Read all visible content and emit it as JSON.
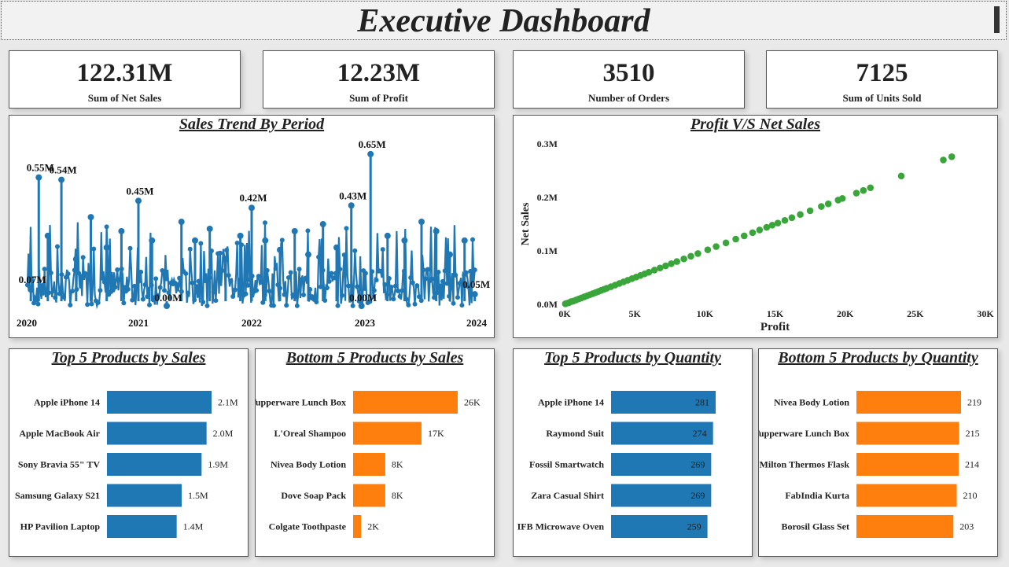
{
  "header": {
    "title": "Executive Dashboard"
  },
  "kpis": [
    {
      "value": "122.31M",
      "label": "Sum of Net Sales"
    },
    {
      "value": "12.23M",
      "label": "Sum of Profit"
    },
    {
      "value": "3510",
      "label": "Number of Orders"
    },
    {
      "value": "7125",
      "label": "Sum of Units Sold"
    }
  ],
  "colors": {
    "blue": "#1f77b4",
    "orange": "#ff7f0e",
    "green": "#3aa53a"
  },
  "chart_data": [
    {
      "id": "sales-trend",
      "type": "line",
      "title": "Sales Trend By Period",
      "xlim": [
        2020,
        2024
      ],
      "x_ticks": [
        "2020",
        "2021",
        "2022",
        "2023",
        "2024"
      ],
      "ylim": [
        0,
        0.68
      ],
      "series": [
        {
          "x": [
            2020.05,
            2020.12,
            2020.2,
            2020.32,
            2020.45,
            2020.58,
            2020.72,
            2020.85,
            2021.0,
            2021.12,
            2021.25,
            2021.38,
            2021.5,
            2021.63,
            2021.77,
            2021.9,
            2022.0,
            2022.12,
            2022.25,
            2022.38,
            2022.5,
            2022.63,
            2022.75,
            2022.88,
            2022.97,
            2023.05,
            2023.2,
            2023.35,
            2023.5,
            2023.63,
            2023.75,
            2023.88,
            2023.97
          ],
          "y": [
            0.07,
            0.55,
            0.3,
            0.54,
            0.2,
            0.38,
            0.25,
            0.32,
            0.45,
            0.28,
            0.0,
            0.36,
            0.28,
            0.33,
            0.2,
            0.3,
            0.42,
            0.28,
            0.24,
            0.32,
            0.22,
            0.35,
            0.25,
            0.43,
            0.0,
            0.65,
            0.3,
            0.28,
            0.36,
            0.32,
            0.22,
            0.28,
            0.05
          ]
        }
      ],
      "data_labels": [
        {
          "text": "0.07M",
          "x": 2020.05,
          "y": 0.07
        },
        {
          "text": "0.55M",
          "x": 2020.12,
          "y": 0.55
        },
        {
          "text": "0.54M",
          "x": 2020.32,
          "y": 0.54
        },
        {
          "text": "0.45M",
          "x": 2021.0,
          "y": 0.45
        },
        {
          "text": "0.00M",
          "x": 2021.25,
          "y": 0.0
        },
        {
          "text": "0.42M",
          "x": 2022.0,
          "y": 0.42
        },
        {
          "text": "0.43M",
          "x": 2022.88,
          "y": 0.43
        },
        {
          "text": "0.00M",
          "x": 2022.97,
          "y": 0.0
        },
        {
          "text": "0.65M",
          "x": 2023.05,
          "y": 0.65
        },
        {
          "text": "0.05M",
          "x": 2023.97,
          "y": 0.05
        }
      ]
    },
    {
      "id": "profit-vs-sales",
      "type": "scatter",
      "title": "Profit V/S Net Sales",
      "xlabel": "Profit",
      "ylabel": "Net Sales",
      "xlim": [
        0,
        30000
      ],
      "ylim": [
        0,
        0.3
      ],
      "x_ticks": [
        "0K",
        "5K",
        "10K",
        "15K",
        "20K",
        "25K",
        "30K"
      ],
      "y_ticks": [
        "0.0M",
        "0.1M",
        "0.2M",
        "0.3M"
      ],
      "points": [
        [
          50,
          0.001
        ],
        [
          150,
          0.002
        ],
        [
          300,
          0.003
        ],
        [
          450,
          0.005
        ],
        [
          600,
          0.006
        ],
        [
          800,
          0.008
        ],
        [
          1000,
          0.01
        ],
        [
          1200,
          0.012
        ],
        [
          1400,
          0.014
        ],
        [
          1600,
          0.016
        ],
        [
          1800,
          0.018
        ],
        [
          2000,
          0.02
        ],
        [
          2200,
          0.022
        ],
        [
          2400,
          0.024
        ],
        [
          2600,
          0.026
        ],
        [
          2800,
          0.028
        ],
        [
          3000,
          0.03
        ],
        [
          3300,
          0.033
        ],
        [
          3600,
          0.036
        ],
        [
          3900,
          0.039
        ],
        [
          4200,
          0.042
        ],
        [
          4500,
          0.045
        ],
        [
          4800,
          0.048
        ],
        [
          5100,
          0.051
        ],
        [
          5400,
          0.054
        ],
        [
          5700,
          0.057
        ],
        [
          6000,
          0.06
        ],
        [
          6400,
          0.064
        ],
        [
          6800,
          0.068
        ],
        [
          7200,
          0.072
        ],
        [
          7600,
          0.076
        ],
        [
          8000,
          0.08
        ],
        [
          8500,
          0.085
        ],
        [
          9000,
          0.09
        ],
        [
          9500,
          0.095
        ],
        [
          10200,
          0.102
        ],
        [
          10800,
          0.108
        ],
        [
          11500,
          0.115
        ],
        [
          12200,
          0.122
        ],
        [
          12800,
          0.128
        ],
        [
          13400,
          0.134
        ],
        [
          13900,
          0.139
        ],
        [
          14400,
          0.144
        ],
        [
          14800,
          0.148
        ],
        [
          15200,
          0.152
        ],
        [
          15700,
          0.157
        ],
        [
          16200,
          0.162
        ],
        [
          16800,
          0.168
        ],
        [
          17500,
          0.175
        ],
        [
          18300,
          0.183
        ],
        [
          18800,
          0.188
        ],
        [
          19500,
          0.195
        ],
        [
          19800,
          0.198
        ],
        [
          20800,
          0.208
        ],
        [
          21300,
          0.213
        ],
        [
          21800,
          0.218
        ],
        [
          24000,
          0.24
        ],
        [
          27000,
          0.27
        ],
        [
          27600,
          0.276
        ]
      ]
    },
    {
      "id": "top5-sales",
      "type": "bar",
      "orientation": "horizontal",
      "title": "Top 5 Products by Sales",
      "categories": [
        "Apple iPhone 14",
        "Apple MacBook Air",
        "Sony Bravia 55\" TV",
        "Samsung Galaxy S21",
        "HP Pavilion Laptop"
      ],
      "values": [
        2.1,
        2.0,
        1.9,
        1.5,
        1.4
      ],
      "value_labels": [
        "2.1M",
        "2.0M",
        "1.9M",
        "1.5M",
        "1.4M"
      ],
      "max": 2.1,
      "color": "#1f77b4",
      "label_inside": false
    },
    {
      "id": "bottom5-sales",
      "type": "bar",
      "orientation": "horizontal",
      "title": "Bottom 5 Products by Sales",
      "categories": [
        "Tupperware Lunch Box",
        "L'Oreal Shampoo",
        "Nivea Body Lotion",
        "Dove Soap Pack",
        "Colgate Toothpaste"
      ],
      "values": [
        26,
        17,
        8,
        8,
        2
      ],
      "value_labels": [
        "26K",
        "17K",
        "8K",
        "8K",
        "2K"
      ],
      "max": 26,
      "color": "#ff7f0e",
      "label_inside": false
    },
    {
      "id": "top5-qty",
      "type": "bar",
      "orientation": "horizontal",
      "title": "Top 5 Products by Quantity",
      "categories": [
        "Apple iPhone 14",
        "Raymond Suit",
        "Fossil Smartwatch",
        "Zara Casual Shirt",
        "IFB Microwave Oven"
      ],
      "values": [
        281,
        274,
        269,
        269,
        259
      ],
      "value_labels": [
        "281",
        "274",
        "269",
        "269",
        "259"
      ],
      "max": 281,
      "color": "#1f77b4",
      "label_inside": true
    },
    {
      "id": "bottom5-qty",
      "type": "bar",
      "orientation": "horizontal",
      "title": "Bottom 5 Products by Quantity",
      "categories": [
        "Nivea Body Lotion",
        "Tupperware Lunch Box",
        "Milton Thermos Flask",
        "FabIndia Kurta",
        "Borosil Glass Set"
      ],
      "values": [
        219,
        215,
        214,
        210,
        203
      ],
      "value_labels": [
        "219",
        "215",
        "214",
        "210",
        "203"
      ],
      "max": 219,
      "color": "#ff7f0e",
      "label_inside": false
    }
  ]
}
